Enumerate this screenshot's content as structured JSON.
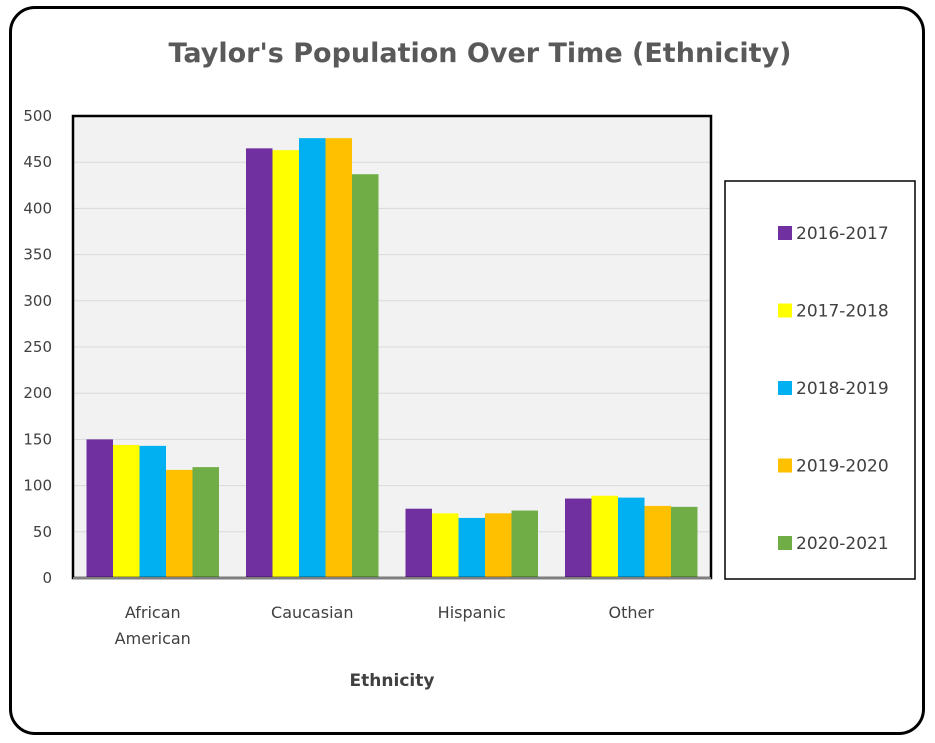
{
  "chart_data": {
    "type": "bar",
    "title": "Taylor's Population Over Time (Ethnicity)",
    "xlabel": "Ethnicity",
    "ylabel": "",
    "categories": [
      [
        "African",
        "American"
      ],
      [
        "Caucasian"
      ],
      [
        "Hispanic"
      ],
      [
        "Other"
      ]
    ],
    "series": [
      {
        "name": "2016-2017",
        "color": "#7030A0",
        "values": [
          150,
          465,
          75,
          86
        ]
      },
      {
        "name": "2017-2018",
        "color": "#FFFF00",
        "values": [
          144,
          463,
          70,
          89
        ]
      },
      {
        "name": "2018-2019",
        "color": "#00B0F0",
        "values": [
          143,
          476,
          65,
          87
        ]
      },
      {
        "name": "2019-2020",
        "color": "#FFC000",
        "values": [
          117,
          476,
          70,
          78
        ]
      },
      {
        "name": "2020-2021",
        "color": "#70AD47",
        "values": [
          120,
          437,
          73,
          77
        ]
      }
    ],
    "ylim": [
      0,
      500
    ],
    "yticks": [
      0,
      50,
      100,
      150,
      200,
      250,
      300,
      350,
      400,
      450,
      500
    ],
    "grid": true,
    "plot_background": "#F2F2F2",
    "legend_position": "right"
  }
}
